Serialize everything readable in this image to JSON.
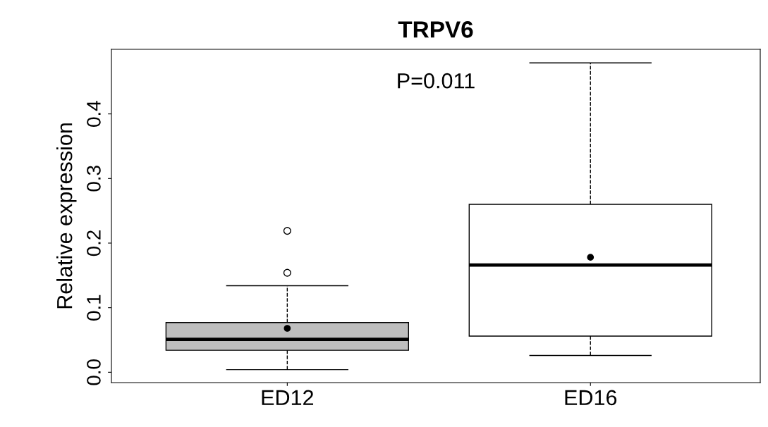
{
  "chart_data": {
    "type": "box",
    "title": "TRPV6",
    "ylabel": "Relative expression",
    "categories": [
      "ED12",
      "ED16"
    ],
    "colors": [
      "#bebebe",
      "#ffffff"
    ],
    "boxes": [
      {
        "low": 0.004,
        "q1": 0.034,
        "median": 0.051,
        "q3": 0.077,
        "high": 0.134,
        "mean": 0.068,
        "outliers": [
          0.154,
          0.219
        ]
      },
      {
        "low": 0.026,
        "q1": 0.056,
        "median": 0.166,
        "q3": 0.26,
        "high": 0.479,
        "mean": 0.178
      }
    ],
    "ylim": [
      -0.016,
      0.5
    ],
    "yticks": [
      {
        "value": 0,
        "label": "0.0"
      },
      0.1,
      0.2,
      0.3,
      0.4
    ],
    "annotations": [
      "P=0.011"
    ],
    "grid": false,
    "legend": false
  }
}
